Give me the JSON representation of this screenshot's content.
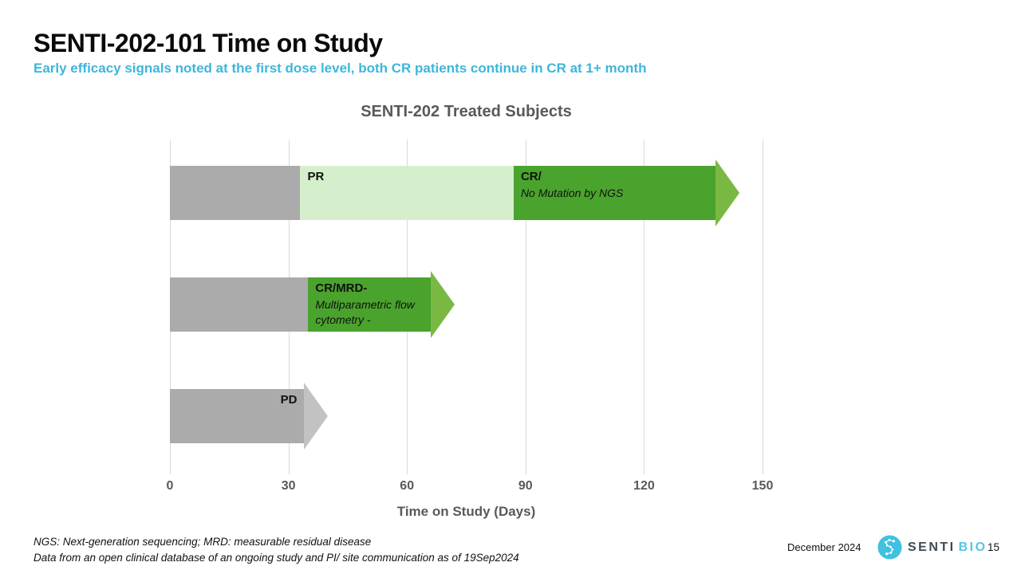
{
  "header": {
    "title": "SENTI-202-101 Time on Study",
    "subtitle": "Early efficacy signals noted at the first dose level, both CR patients continue in CR at 1+ month"
  },
  "chart_data": {
    "type": "bar",
    "variant": "horizontal-timeline",
    "title": "SENTI-202 Treated Subjects",
    "xlabel": "Time on Study (Days)",
    "xlim": [
      0,
      150
    ],
    "xticks": [
      0,
      30,
      60,
      90,
      120,
      150
    ],
    "grid": "vertical-gridlines-only",
    "gridline_color": "#d9d9d9",
    "axis_text_color": "#595959",
    "bars": [
      {
        "name": "subject-1",
        "ongoing": true,
        "arrow_color": "#79b943",
        "segments": [
          {
            "start": 0,
            "end": 33,
            "color": "#ababab",
            "label": "",
            "sublabel": "",
            "align": "start"
          },
          {
            "start": 33,
            "end": 87,
            "color": "#d5efcc",
            "label": "PR",
            "sublabel": "",
            "align": "start"
          },
          {
            "start": 87,
            "end": 138,
            "color": "#4aa32d",
            "label": "CR/",
            "sublabel": "No Mutation by NGS",
            "align": "start"
          }
        ]
      },
      {
        "name": "subject-2",
        "ongoing": true,
        "arrow_color": "#79b943",
        "segments": [
          {
            "start": 0,
            "end": 35,
            "color": "#ababab",
            "label": "",
            "sublabel": "",
            "align": "start"
          },
          {
            "start": 35,
            "end": 66,
            "color": "#4aa32d",
            "label": "CR/MRD-",
            "sublabel": "Multiparametric flow cytometry -",
            "align": "start"
          }
        ]
      },
      {
        "name": "subject-3",
        "ongoing": false,
        "arrow_color": "#c2c2c2",
        "segments": [
          {
            "start": 0,
            "end": 34,
            "color": "#ababab",
            "label": "PD",
            "sublabel": "",
            "align": "end"
          }
        ]
      }
    ]
  },
  "footer": {
    "footnote_line1": "NGS: Next-generation sequencing; MRD: measurable residual disease",
    "footnote_line2": "Data from an open clinical database of an ongoing study and PI/ site communication as of 19Sep2024",
    "date": "December 2024",
    "logo_text_primary": "SENTI",
    "logo_text_secondary": "BIO",
    "page_number": "15"
  }
}
